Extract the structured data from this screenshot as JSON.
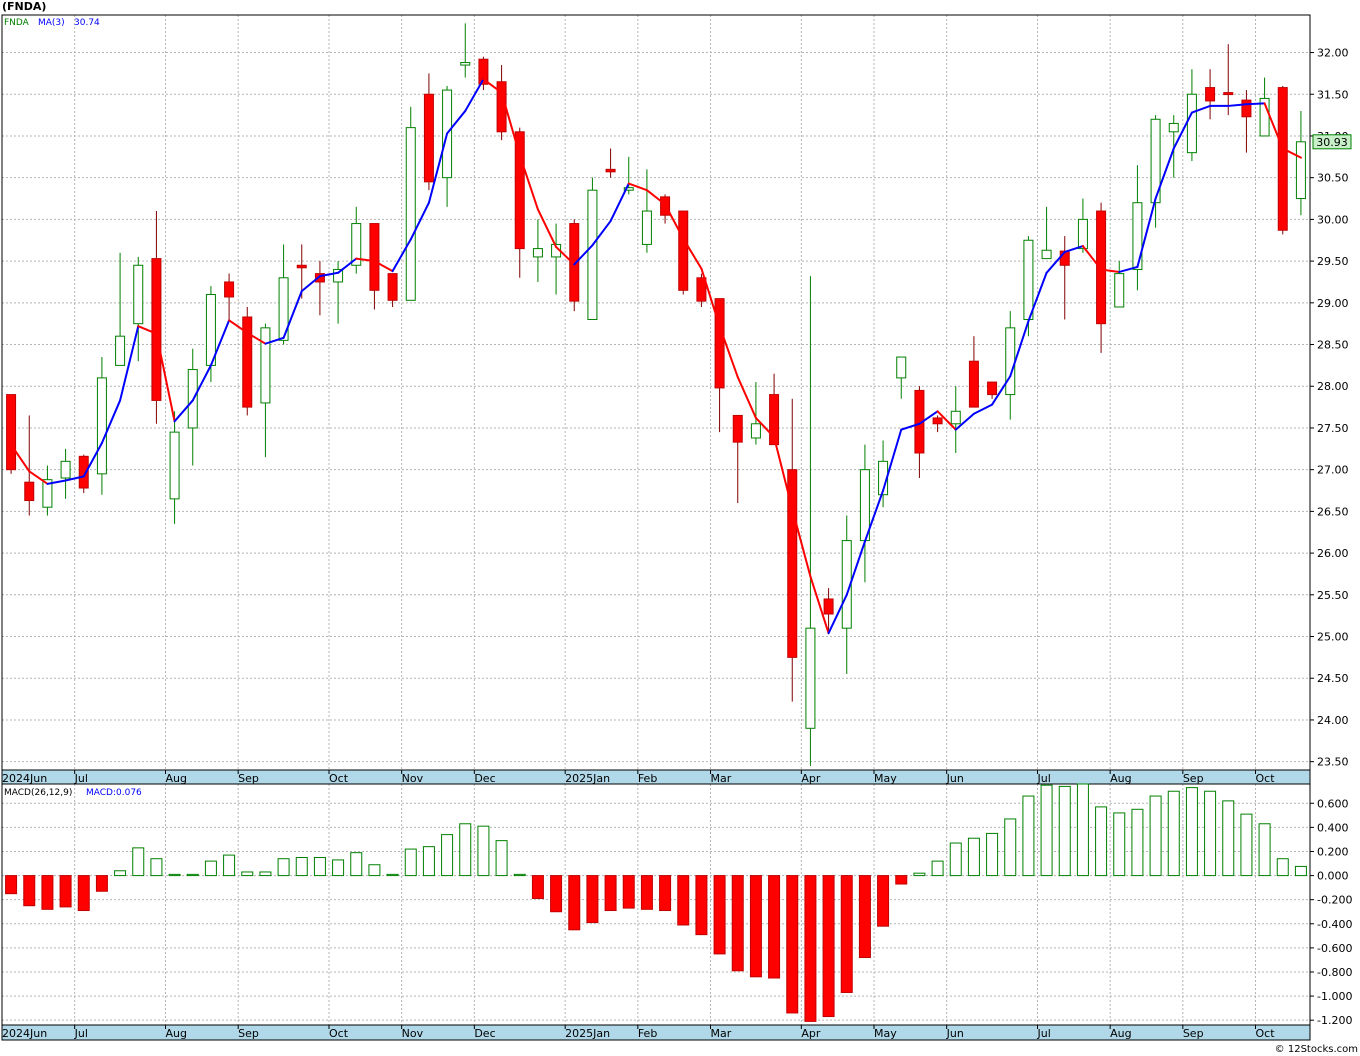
{
  "title": "(FNDA)",
  "footer": "© 12Stocks.com",
  "colors": {
    "up": "#008000",
    "down": "#ff0000",
    "ma_up": "#0000ff",
    "ma_down": "#ff0000",
    "axis_band": "#b0d8e8",
    "grid": "#b4b4b4",
    "price_box": "#c8f0c8"
  },
  "price_legend": {
    "symbol": "FNDA",
    "ma_label": "MA(3)",
    "ma_value": "30.74"
  },
  "macd_legend": {
    "label": "MACD(26,12,9)",
    "value_label": "MACD:0.076"
  },
  "last_price_label": "30.93",
  "months": [
    {
      "i": 0,
      "label": "2024Jun"
    },
    {
      "i": 4,
      "label": "Jul"
    },
    {
      "i": 9,
      "label": "Aug"
    },
    {
      "i": 13,
      "label": "Sep"
    },
    {
      "i": 18,
      "label": "Oct"
    },
    {
      "i": 22,
      "label": "Nov"
    },
    {
      "i": 26,
      "label": "Dec"
    },
    {
      "i": 31,
      "label": "2025Jan"
    },
    {
      "i": 35,
      "label": "Feb"
    },
    {
      "i": 39,
      "label": "Mar"
    },
    {
      "i": 44,
      "label": "Apr"
    },
    {
      "i": 48,
      "label": "May"
    },
    {
      "i": 52,
      "label": "Jun"
    },
    {
      "i": 57,
      "label": "Jul"
    },
    {
      "i": 61,
      "label": "Aug"
    },
    {
      "i": 65,
      "label": "Sep"
    },
    {
      "i": 69,
      "label": "Oct"
    }
  ],
  "chart_data": [
    {
      "type": "candlestick",
      "title": "(FNDA)",
      "ylim": [
        23.4,
        32.45
      ],
      "y_ticks": [
        "23.50",
        "24.00",
        "24.50",
        "25.00",
        "25.50",
        "26.00",
        "26.50",
        "27.00",
        "27.50",
        "28.00",
        "28.50",
        "29.00",
        "29.50",
        "30.00",
        "30.50",
        "31.00",
        "31.50",
        "32.00"
      ],
      "candles": [
        {
          "o": 27.9,
          "h": 27.9,
          "l": 26.95,
          "c": 27.0
        },
        {
          "o": 26.85,
          "h": 27.65,
          "l": 26.45,
          "c": 26.63
        },
        {
          "o": 26.55,
          "h": 27.05,
          "l": 26.45,
          "c": 26.88
        },
        {
          "o": 26.9,
          "h": 27.25,
          "l": 26.65,
          "c": 27.1
        },
        {
          "o": 27.16,
          "h": 27.18,
          "l": 26.72,
          "c": 26.78
        },
        {
          "o": 26.95,
          "h": 28.35,
          "l": 26.7,
          "c": 28.1
        },
        {
          "o": 28.25,
          "h": 29.6,
          "l": 28.25,
          "c": 28.6
        },
        {
          "o": 28.75,
          "h": 29.55,
          "l": 28.3,
          "c": 29.45
        },
        {
          "o": 29.53,
          "h": 30.1,
          "l": 27.55,
          "c": 27.83
        },
        {
          "o": 26.65,
          "h": 27.7,
          "l": 26.35,
          "c": 27.45
        },
        {
          "o": 27.5,
          "h": 28.45,
          "l": 27.05,
          "c": 28.2
        },
        {
          "o": 28.25,
          "h": 29.2,
          "l": 28.05,
          "c": 29.1
        },
        {
          "o": 29.25,
          "h": 29.35,
          "l": 28.8,
          "c": 29.07
        },
        {
          "o": 28.83,
          "h": 28.95,
          "l": 27.65,
          "c": 27.75
        },
        {
          "o": 27.8,
          "h": 28.75,
          "l": 27.15,
          "c": 28.7
        },
        {
          "o": 28.55,
          "h": 29.7,
          "l": 28.5,
          "c": 29.3
        },
        {
          "o": 29.45,
          "h": 29.7,
          "l": 29.05,
          "c": 29.42
        },
        {
          "o": 29.35,
          "h": 29.5,
          "l": 28.85,
          "c": 29.25
        },
        {
          "o": 29.25,
          "h": 29.5,
          "l": 28.75,
          "c": 29.4
        },
        {
          "o": 29.45,
          "h": 30.15,
          "l": 29.35,
          "c": 29.95
        },
        {
          "o": 29.95,
          "h": 29.95,
          "l": 28.92,
          "c": 29.15
        },
        {
          "o": 29.35,
          "h": 29.35,
          "l": 28.95,
          "c": 29.03
        },
        {
          "o": 29.03,
          "h": 31.35,
          "l": 29.03,
          "c": 31.1
        },
        {
          "o": 31.5,
          "h": 31.75,
          "l": 30.35,
          "c": 30.45
        },
        {
          "o": 30.5,
          "h": 31.6,
          "l": 30.15,
          "c": 31.55
        },
        {
          "o": 31.85,
          "h": 32.35,
          "l": 31.7,
          "c": 31.88
        },
        {
          "o": 31.92,
          "h": 31.95,
          "l": 31.55,
          "c": 31.62
        },
        {
          "o": 31.65,
          "h": 31.85,
          "l": 30.95,
          "c": 31.05
        },
        {
          "o": 31.05,
          "h": 31.1,
          "l": 29.3,
          "c": 29.65
        },
        {
          "o": 29.55,
          "h": 30.0,
          "l": 29.25,
          "c": 29.65
        },
        {
          "o": 29.55,
          "h": 29.95,
          "l": 29.1,
          "c": 29.7
        },
        {
          "o": 29.95,
          "h": 30.0,
          "l": 28.9,
          "c": 29.02
        },
        {
          "o": 28.8,
          "h": 30.5,
          "l": 28.8,
          "c": 30.35
        },
        {
          "o": 30.6,
          "h": 30.85,
          "l": 30.5,
          "c": 30.57
        },
        {
          "o": 30.35,
          "h": 30.75,
          "l": 30.3,
          "c": 30.38
        },
        {
          "o": 29.7,
          "h": 30.6,
          "l": 29.6,
          "c": 30.1
        },
        {
          "o": 30.27,
          "h": 30.3,
          "l": 29.95,
          "c": 30.05
        },
        {
          "o": 30.1,
          "h": 30.1,
          "l": 29.1,
          "c": 29.15
        },
        {
          "o": 29.3,
          "h": 29.35,
          "l": 28.95,
          "c": 29.02
        },
        {
          "o": 29.05,
          "h": 29.05,
          "l": 27.45,
          "c": 27.98
        },
        {
          "o": 27.65,
          "h": 27.65,
          "l": 26.6,
          "c": 27.33
        },
        {
          "o": 27.38,
          "h": 28.05,
          "l": 27.3,
          "c": 27.55
        },
        {
          "o": 27.9,
          "h": 28.15,
          "l": 27.35,
          "c": 27.3
        },
        {
          "o": 27.0,
          "h": 27.85,
          "l": 24.22,
          "c": 24.75
        },
        {
          "o": 23.9,
          "h": 29.32,
          "l": 23.45,
          "c": 25.1
        },
        {
          "o": 25.45,
          "h": 25.58,
          "l": 25.05,
          "c": 25.27
        },
        {
          "o": 25.1,
          "h": 26.45,
          "l": 24.55,
          "c": 26.15
        },
        {
          "o": 26.15,
          "h": 27.3,
          "l": 25.65,
          "c": 27.0
        },
        {
          "o": 26.7,
          "h": 27.35,
          "l": 26.55,
          "c": 27.1
        },
        {
          "o": 28.1,
          "h": 28.35,
          "l": 27.85,
          "c": 28.35
        },
        {
          "o": 27.95,
          "h": 28.0,
          "l": 26.9,
          "c": 27.2
        },
        {
          "o": 27.62,
          "h": 27.65,
          "l": 27.45,
          "c": 27.55
        },
        {
          "o": 27.55,
          "h": 28.0,
          "l": 27.2,
          "c": 27.7
        },
        {
          "o": 28.3,
          "h": 28.6,
          "l": 27.75,
          "c": 27.75
        },
        {
          "o": 28.05,
          "h": 28.05,
          "l": 27.85,
          "c": 27.9
        },
        {
          "o": 27.9,
          "h": 28.9,
          "l": 27.6,
          "c": 28.7
        },
        {
          "o": 28.8,
          "h": 29.8,
          "l": 28.6,
          "c": 29.75
        },
        {
          "o": 29.53,
          "h": 30.15,
          "l": 29.55,
          "c": 29.63
        },
        {
          "o": 29.62,
          "h": 29.8,
          "l": 28.8,
          "c": 29.45
        },
        {
          "o": 29.65,
          "h": 30.25,
          "l": 29.6,
          "c": 30.0
        },
        {
          "o": 30.1,
          "h": 30.2,
          "l": 28.4,
          "c": 28.75
        },
        {
          "o": 28.95,
          "h": 29.5,
          "l": 28.95,
          "c": 29.35
        },
        {
          "o": 29.4,
          "h": 30.65,
          "l": 29.15,
          "c": 30.2
        },
        {
          "o": 30.2,
          "h": 31.25,
          "l": 29.9,
          "c": 31.2
        },
        {
          "o": 31.05,
          "h": 31.25,
          "l": 30.5,
          "c": 31.15
        },
        {
          "o": 30.8,
          "h": 31.8,
          "l": 30.7,
          "c": 31.5
        },
        {
          "o": 31.58,
          "h": 31.8,
          "l": 31.2,
          "c": 31.42
        },
        {
          "o": 31.52,
          "h": 32.1,
          "l": 31.25,
          "c": 31.5
        },
        {
          "o": 31.43,
          "h": 31.55,
          "l": 30.8,
          "c": 31.23
        },
        {
          "o": 31.0,
          "h": 31.7,
          "l": 31.0,
          "c": 31.45
        },
        {
          "o": 31.58,
          "h": 31.6,
          "l": 29.82,
          "c": 29.87
        },
        {
          "o": 30.25,
          "h": 31.3,
          "l": 30.05,
          "c": 30.93
        }
      ],
      "ma": {
        "name": "MA(3)",
        "values": [
          27.3,
          26.98,
          26.83,
          26.87,
          26.92,
          27.32,
          27.83,
          28.72,
          28.63,
          27.58,
          27.83,
          28.25,
          28.79,
          28.64,
          28.51,
          28.58,
          29.14,
          29.32,
          29.36,
          29.53,
          29.5,
          29.38,
          29.76,
          30.2,
          31.03,
          31.3,
          31.68,
          31.52,
          30.77,
          30.12,
          29.67,
          29.46,
          29.69,
          29.98,
          30.43,
          30.35,
          30.18,
          29.77,
          29.41,
          28.72,
          28.11,
          27.62,
          27.39,
          26.53,
          25.72,
          25.04,
          25.5,
          26.14,
          26.75,
          27.48,
          27.55,
          27.7,
          27.48,
          27.67,
          27.78,
          28.12,
          28.78,
          29.36,
          29.61,
          29.68,
          29.4,
          29.37,
          29.43,
          30.25,
          30.85,
          31.28,
          31.36,
          31.36,
          31.38,
          31.39,
          30.85,
          30.74
        ]
      }
    },
    {
      "type": "bar",
      "title": "MACD(26,12,9)",
      "ylim": [
        -1.24,
        0.76
      ],
      "y_ticks": [
        "-1.200",
        "-1.000",
        "-0.800",
        "-0.600",
        "-0.400",
        "-0.200",
        "0.000",
        "0.200",
        "0.400",
        "0.600"
      ],
      "values": [
        -0.15,
        -0.25,
        -0.28,
        -0.26,
        -0.29,
        -0.13,
        0.04,
        0.23,
        0.14,
        0.01,
        0.01,
        0.12,
        0.17,
        0.03,
        0.03,
        0.14,
        0.15,
        0.15,
        0.13,
        0.19,
        0.09,
        0.01,
        0.22,
        0.24,
        0.34,
        0.43,
        0.41,
        0.29,
        0.01,
        -0.19,
        -0.3,
        -0.45,
        -0.39,
        -0.29,
        -0.27,
        -0.28,
        -0.29,
        -0.41,
        -0.49,
        -0.65,
        -0.79,
        -0.84,
        -0.85,
        -1.14,
        -1.21,
        -1.17,
        -0.97,
        -0.68,
        -0.42,
        -0.07,
        0.02,
        0.12,
        0.27,
        0.31,
        0.35,
        0.47,
        0.66,
        0.75,
        0.74,
        0.76,
        0.57,
        0.52,
        0.55,
        0.66,
        0.7,
        0.73,
        0.7,
        0.62,
        0.51,
        0.43,
        0.14,
        0.076
      ]
    }
  ]
}
